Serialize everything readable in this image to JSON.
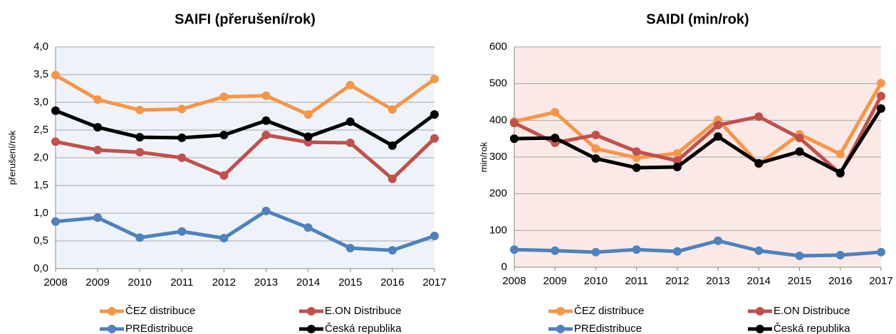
{
  "chart_data": [
    {
      "type": "line",
      "title": "SAIFI (přerušení/rok)",
      "y_label": "přerušení/rok",
      "categories": [
        "2008",
        "2009",
        "2010",
        "2011",
        "2012",
        "2013",
        "2014",
        "2015",
        "2016",
        "2017"
      ],
      "ylim": [
        0,
        4
      ],
      "yticks": [
        {
          "value": 0,
          "label": "0,0"
        },
        {
          "value": 0.5,
          "label": "0,5"
        },
        {
          "value": 1,
          "label": "1,0"
        },
        {
          "value": 1.5,
          "label": "1,5"
        },
        {
          "value": 2,
          "label": "2,0"
        },
        {
          "value": 2.5,
          "label": "2,5"
        },
        {
          "value": 3,
          "label": "3,0"
        },
        {
          "value": 3.5,
          "label": "3,5"
        },
        {
          "value": 4,
          "label": "4,0"
        }
      ],
      "grid": true,
      "plot_background": "#eef3fa",
      "series": [
        {
          "name": "ČEZ distribuce",
          "color": "#f79646",
          "values": [
            3.49,
            3.05,
            2.86,
            2.88,
            3.1,
            3.12,
            2.78,
            3.31,
            2.87,
            3.42
          ]
        },
        {
          "name": "E.ON Distribuce",
          "color": "#c0504d",
          "values": [
            2.29,
            2.14,
            2.1,
            2.0,
            1.68,
            2.41,
            2.28,
            2.27,
            1.62,
            2.35
          ]
        },
        {
          "name": "PREdistribuce",
          "color": "#4f81bd",
          "values": [
            0.85,
            0.92,
            0.56,
            0.67,
            0.55,
            1.04,
            0.74,
            0.37,
            0.33,
            0.59
          ]
        },
        {
          "name": "Česká republika",
          "color": "#000000",
          "values": [
            2.85,
            2.55,
            2.37,
            2.36,
            2.41,
            2.67,
            2.38,
            2.65,
            2.22,
            2.78
          ]
        }
      ]
    },
    {
      "type": "line",
      "title": "SAIDI (min/rok)",
      "y_label": "min/rok",
      "categories": [
        "2008",
        "2009",
        "2010",
        "2011",
        "2012",
        "2013",
        "2014",
        "2015",
        "2016",
        "2017"
      ],
      "ylim": [
        0,
        600
      ],
      "yticks": [
        0,
        100,
        200,
        300,
        400,
        500,
        600
      ],
      "grid": true,
      "plot_background": "#fae9e6",
      "series": [
        {
          "name": "ČEZ distribuce",
          "color": "#f79646",
          "values": [
            397,
            422,
            323,
            298,
            310,
            401,
            281,
            362,
            308,
            501
          ]
        },
        {
          "name": "E.ON Distribuce",
          "color": "#c0504d",
          "values": [
            393,
            339,
            360,
            315,
            290,
            387,
            410,
            352,
            255,
            466
          ]
        },
        {
          "name": "PREdistribuce",
          "color": "#4f81bd",
          "values": [
            48,
            45,
            41,
            48,
            43,
            72,
            45,
            31,
            33,
            41
          ]
        },
        {
          "name": "Česká republika",
          "color": "#000000",
          "values": [
            350,
            352,
            296,
            271,
            273,
            356,
            283,
            315,
            257,
            432
          ]
        }
      ]
    }
  ]
}
